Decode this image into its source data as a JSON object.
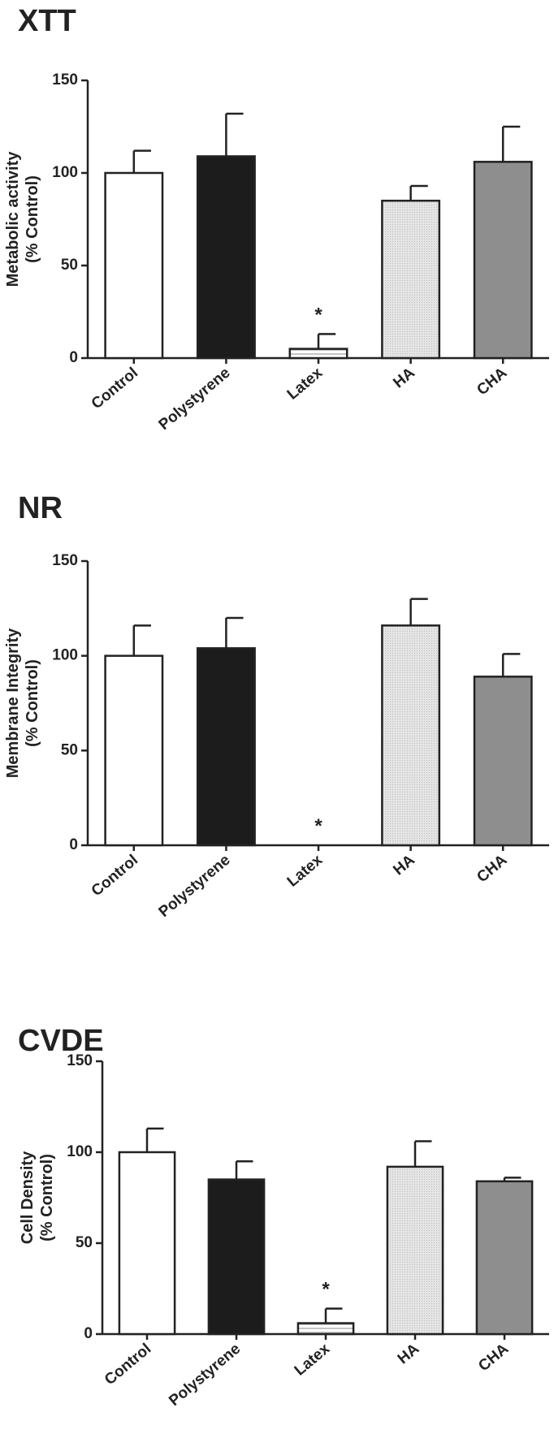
{
  "chart_data": [
    {
      "type": "bar",
      "title": "XTT",
      "ylabel": [
        "Metabolic activity",
        "(% Control)"
      ],
      "categories": [
        "Control",
        "Polystyrene",
        "Latex",
        "HA",
        "CHA"
      ],
      "values": [
        100,
        109,
        5,
        85,
        106
      ],
      "errors": [
        12,
        23,
        8,
        8,
        19
      ],
      "colors": [
        "#ffffff",
        "#1c1c1c",
        "#ffffff",
        "#e2e2e2",
        "#8e8e8e"
      ],
      "patterns": [
        null,
        null,
        "horizontal",
        "dotted",
        null
      ],
      "ylim": [
        0,
        150
      ],
      "yticks": [
        0,
        50,
        100,
        150
      ],
      "annotations": [
        {
          "text": "*",
          "category": "Latex"
        }
      ]
    },
    {
      "type": "bar",
      "title": "NR",
      "ylabel": [
        "Membrane Integrity",
        "(% Control)"
      ],
      "categories": [
        "Control",
        "Polystyrene",
        "Latex",
        "HA",
        "CHA"
      ],
      "values": [
        100,
        104,
        0,
        116,
        89
      ],
      "errors": [
        16,
        16,
        0,
        14,
        12
      ],
      "colors": [
        "#ffffff",
        "#1c1c1c",
        "#ffffff",
        "#e2e2e2",
        "#8e8e8e"
      ],
      "patterns": [
        null,
        null,
        "horizontal",
        "dotted",
        null
      ],
      "ylim": [
        0,
        150
      ],
      "yticks": [
        0,
        50,
        100,
        150
      ],
      "annotations": [
        {
          "text": "*",
          "category": "Latex"
        }
      ]
    },
    {
      "type": "bar",
      "title": "CVDE",
      "ylabel": [
        "Cell Density",
        "(% Control)"
      ],
      "categories": [
        "Control",
        "Polystyrene",
        "Latex",
        "HA",
        "CHA"
      ],
      "values": [
        100,
        85,
        6,
        92,
        84
      ],
      "errors": [
        13,
        10,
        8,
        14,
        2
      ],
      "colors": [
        "#ffffff",
        "#1c1c1c",
        "#ffffff",
        "#e2e2e2",
        "#8e8e8e"
      ],
      "patterns": [
        null,
        null,
        "horizontal",
        "dotted",
        null
      ],
      "ylim": [
        0,
        150
      ],
      "yticks": [
        0,
        50,
        100,
        150
      ],
      "annotations": [
        {
          "text": "*",
          "category": "Latex"
        }
      ]
    }
  ]
}
